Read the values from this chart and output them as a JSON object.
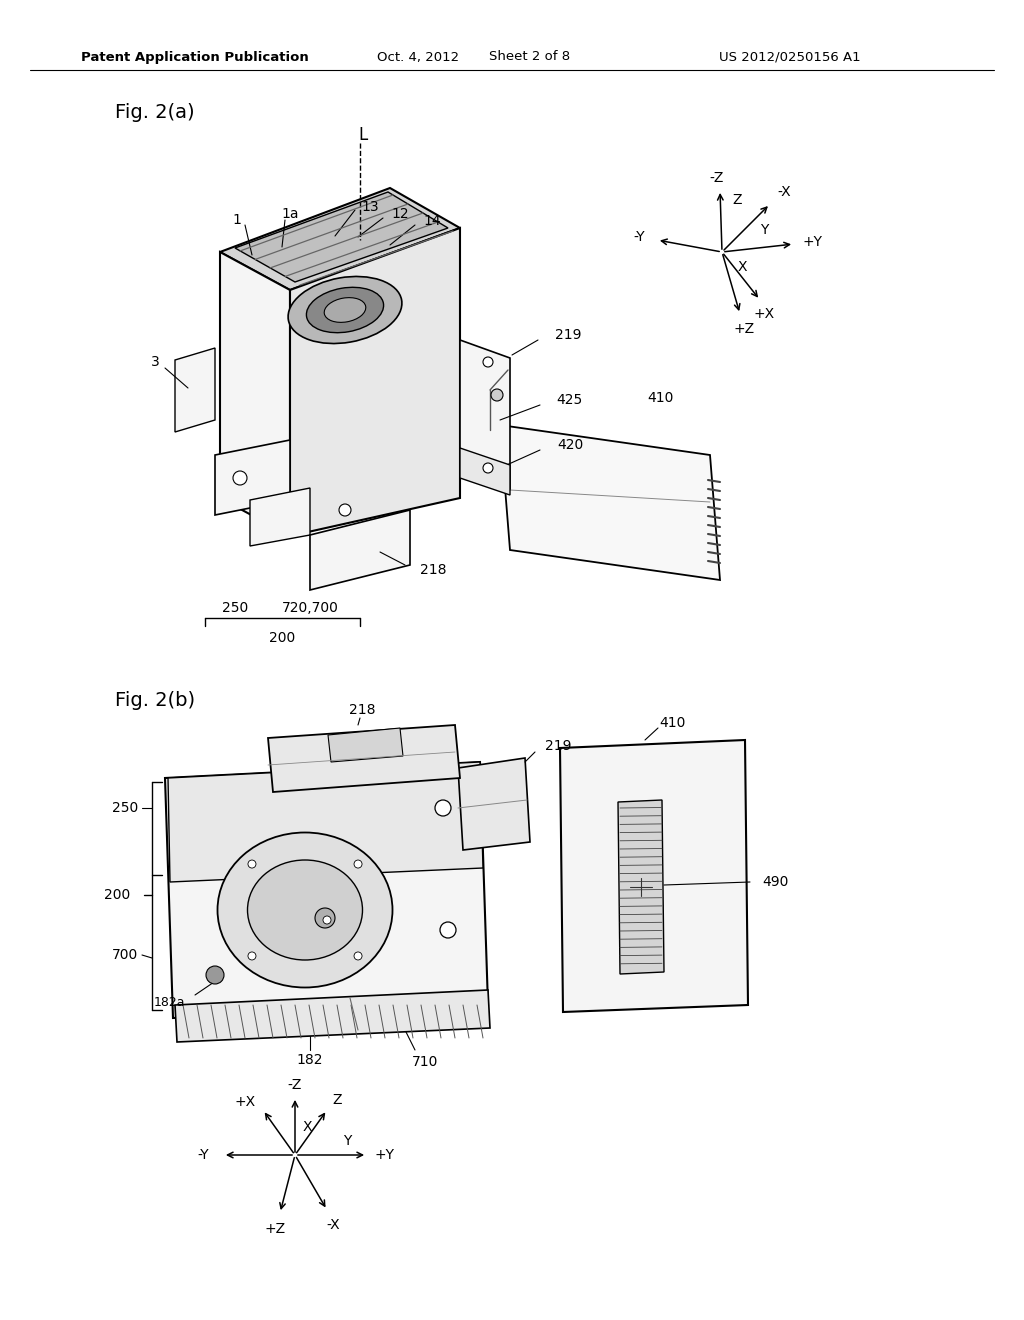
{
  "bg_color": "#ffffff",
  "header_left": "Patent Application Publication",
  "header_date": "Oct. 4, 2012",
  "header_sheet": "Sheet 2 of 8",
  "header_patent": "US 2012/0250156 A1",
  "fig_a_label": "Fig. 2(a)",
  "fig_b_label": "Fig. 2(b)",
  "face_light": "#f5f5f5",
  "face_mid": "#e8e8e8",
  "face_dark": "#d5d5d5",
  "face_darker": "#c0c0c0",
  "line_color": "#000000"
}
